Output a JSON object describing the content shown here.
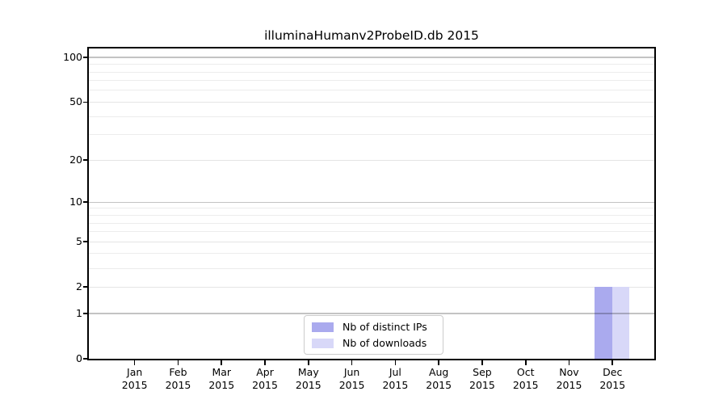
{
  "chart_data": {
    "type": "bar",
    "title": "illuminaHumanv2ProbeID.db 2015",
    "categories": [
      "Jan",
      "Feb",
      "Mar",
      "Apr",
      "May",
      "Jun",
      "Jul",
      "Aug",
      "Sep",
      "Oct",
      "Nov",
      "Dec"
    ],
    "x_tick_year": "2015",
    "series": [
      {
        "name": "Nb of distinct IPs",
        "color": "#aaaaee",
        "values": [
          0,
          0,
          0,
          0,
          0,
          0,
          0,
          0,
          0,
          0,
          0,
          2
        ]
      },
      {
        "name": "Nb of downloads",
        "color": "#d8d8f8",
        "values": [
          0,
          0,
          0,
          0,
          0,
          0,
          0,
          0,
          0,
          0,
          0,
          2
        ]
      }
    ],
    "y_scale": "log10(1+x)",
    "ylim": [
      0,
      115
    ],
    "y_ticks": [
      0,
      1,
      2,
      5,
      10,
      20,
      50,
      100
    ],
    "y_major_gridlines": [
      1,
      10,
      100
    ],
    "y_sub_gridlines": [
      2,
      5,
      20,
      50
    ],
    "y_minor_gridlines": [
      3,
      4,
      6,
      7,
      8,
      9,
      30,
      40,
      60,
      70,
      80,
      90
    ],
    "grid": true,
    "legend_position": "lower-center"
  }
}
